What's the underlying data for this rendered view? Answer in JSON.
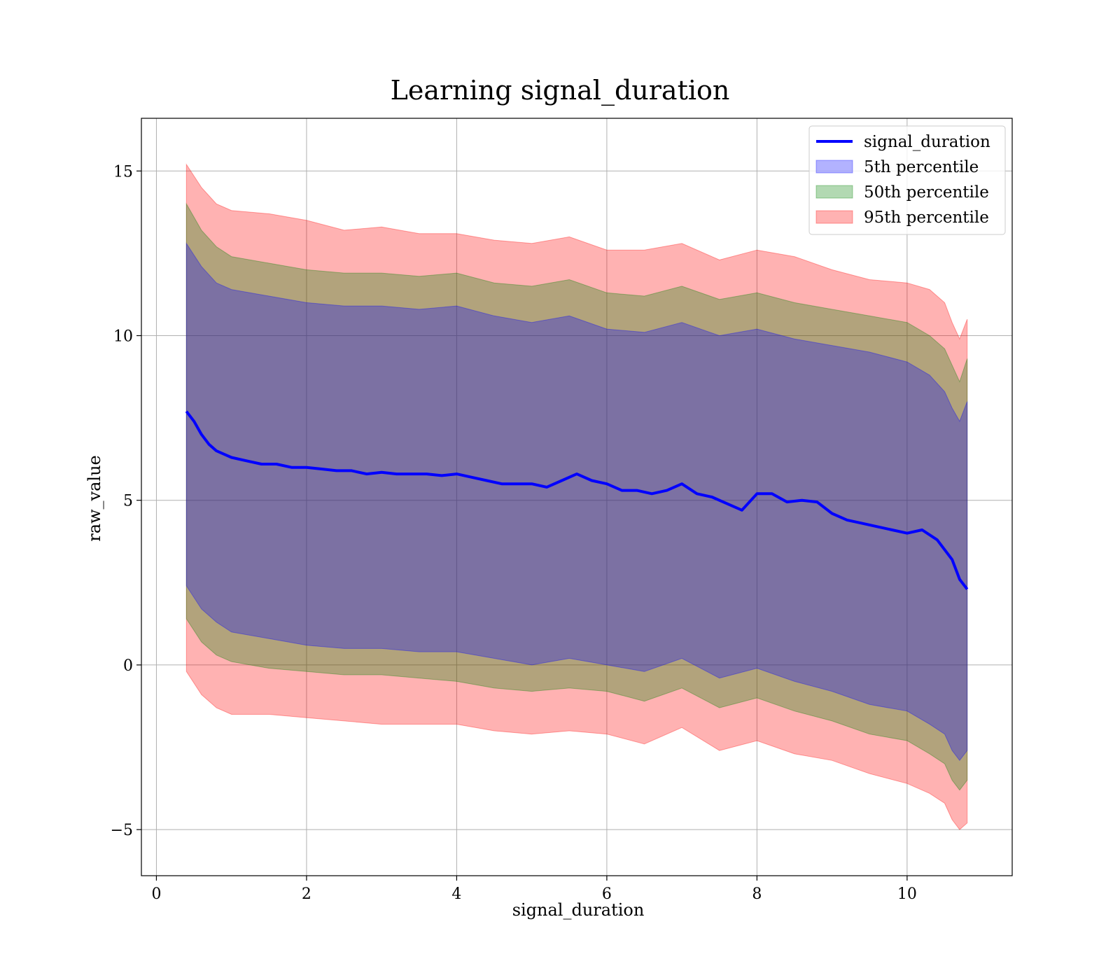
{
  "chart_data": {
    "type": "area",
    "title": "Learning signal_duration",
    "xlabel": "signal_duration",
    "ylabel": "raw_value",
    "xlim": [
      -0.2,
      11.4
    ],
    "ylim": [
      -6.4,
      16.6
    ],
    "xticks": [
      0,
      2,
      4,
      6,
      8,
      10
    ],
    "yticks": [
      -5,
      0,
      5,
      10,
      15
    ],
    "xtick_labels": [
      "0",
      "2",
      "4",
      "6",
      "8",
      "10"
    ],
    "ytick_labels": [
      "−5",
      "0",
      "5",
      "10",
      "15"
    ],
    "grid": true,
    "legend_position": "top-right",
    "colors": {
      "line": "#0000ff",
      "p5": "#0000ff",
      "p50": "#008000",
      "p95": "#ff0000",
      "grid": "#b0b0b0"
    },
    "line": {
      "name": "signal_duration",
      "x": [
        0.4,
        0.5,
        0.6,
        0.7,
        0.8,
        0.9,
        1.0,
        1.2,
        1.4,
        1.6,
        1.8,
        2.0,
        2.2,
        2.4,
        2.6,
        2.8,
        3.0,
        3.2,
        3.4,
        3.6,
        3.8,
        4.0,
        4.2,
        4.4,
        4.6,
        4.8,
        5.0,
        5.2,
        5.4,
        5.6,
        5.8,
        6.0,
        6.2,
        6.4,
        6.6,
        6.8,
        7.0,
        7.2,
        7.4,
        7.6,
        7.8,
        8.0,
        8.2,
        8.4,
        8.6,
        8.8,
        9.0,
        9.2,
        9.4,
        9.6,
        9.8,
        10.0,
        10.2,
        10.4,
        10.6,
        10.7,
        10.8
      ],
      "y": [
        7.7,
        7.4,
        7.0,
        6.7,
        6.5,
        6.4,
        6.3,
        6.2,
        6.1,
        6.1,
        6.0,
        6.0,
        5.95,
        5.9,
        5.9,
        5.8,
        5.85,
        5.8,
        5.8,
        5.8,
        5.75,
        5.8,
        5.7,
        5.6,
        5.5,
        5.5,
        5.5,
        5.4,
        5.6,
        5.8,
        5.6,
        5.5,
        5.3,
        5.3,
        5.2,
        5.3,
        5.5,
        5.2,
        5.1,
        4.9,
        4.7,
        5.2,
        5.2,
        4.95,
        5.0,
        4.95,
        4.6,
        4.4,
        4.3,
        4.2,
        4.1,
        4.0,
        4.1,
        3.8,
        3.2,
        2.6,
        2.3
      ]
    },
    "bands": [
      {
        "name": "95th percentile",
        "x": [
          0.4,
          0.6,
          0.8,
          1.0,
          1.5,
          2.0,
          2.5,
          3.0,
          3.5,
          4.0,
          4.5,
          5.0,
          5.5,
          6.0,
          6.5,
          7.0,
          7.5,
          8.0,
          8.5,
          9.0,
          9.5,
          10.0,
          10.3,
          10.5,
          10.6,
          10.7,
          10.8
        ],
        "upper": [
          15.2,
          14.5,
          14.0,
          13.8,
          13.7,
          13.5,
          13.2,
          13.3,
          13.1,
          13.1,
          12.9,
          12.8,
          13.0,
          12.6,
          12.6,
          12.8,
          12.3,
          12.6,
          12.4,
          12.0,
          11.7,
          11.6,
          11.4,
          11.0,
          10.4,
          9.9,
          10.5
        ],
        "lower": [
          -0.2,
          -0.9,
          -1.3,
          -1.5,
          -1.5,
          -1.6,
          -1.7,
          -1.8,
          -1.8,
          -1.8,
          -2.0,
          -2.1,
          -2.0,
          -2.1,
          -2.4,
          -1.9,
          -2.6,
          -2.3,
          -2.7,
          -2.9,
          -3.3,
          -3.6,
          -3.9,
          -4.2,
          -4.7,
          -5.0,
          -4.8
        ]
      },
      {
        "name": "50th percentile",
        "x": [
          0.4,
          0.6,
          0.8,
          1.0,
          1.5,
          2.0,
          2.5,
          3.0,
          3.5,
          4.0,
          4.5,
          5.0,
          5.5,
          6.0,
          6.5,
          7.0,
          7.5,
          8.0,
          8.5,
          9.0,
          9.5,
          10.0,
          10.3,
          10.5,
          10.6,
          10.7,
          10.8
        ],
        "upper": [
          14.0,
          13.2,
          12.7,
          12.4,
          12.2,
          12.0,
          11.9,
          11.9,
          11.8,
          11.9,
          11.6,
          11.5,
          11.7,
          11.3,
          11.2,
          11.5,
          11.1,
          11.3,
          11.0,
          10.8,
          10.6,
          10.4,
          10.0,
          9.6,
          9.1,
          8.6,
          9.3
        ],
        "lower": [
          1.4,
          0.7,
          0.3,
          0.1,
          -0.1,
          -0.2,
          -0.3,
          -0.3,
          -0.4,
          -0.5,
          -0.7,
          -0.8,
          -0.7,
          -0.8,
          -1.1,
          -0.7,
          -1.3,
          -1.0,
          -1.4,
          -1.7,
          -2.1,
          -2.3,
          -2.7,
          -3.0,
          -3.5,
          -3.8,
          -3.5
        ]
      },
      {
        "name": "5th percentile",
        "x": [
          0.4,
          0.6,
          0.8,
          1.0,
          1.5,
          2.0,
          2.5,
          3.0,
          3.5,
          4.0,
          4.5,
          5.0,
          5.5,
          6.0,
          6.5,
          7.0,
          7.5,
          8.0,
          8.5,
          9.0,
          9.5,
          10.0,
          10.3,
          10.5,
          10.6,
          10.7,
          10.8
        ],
        "upper": [
          12.8,
          12.1,
          11.6,
          11.4,
          11.2,
          11.0,
          10.9,
          10.9,
          10.8,
          10.9,
          10.6,
          10.4,
          10.6,
          10.2,
          10.1,
          10.4,
          10.0,
          10.2,
          9.9,
          9.7,
          9.5,
          9.2,
          8.8,
          8.3,
          7.8,
          7.4,
          8.0
        ],
        "lower": [
          2.4,
          1.7,
          1.3,
          1.0,
          0.8,
          0.6,
          0.5,
          0.5,
          0.4,
          0.4,
          0.2,
          0.0,
          0.2,
          0.0,
          -0.2,
          0.2,
          -0.4,
          -0.1,
          -0.5,
          -0.8,
          -1.2,
          -1.4,
          -1.8,
          -2.1,
          -2.6,
          -2.9,
          -2.6
        ]
      }
    ],
    "legend": [
      {
        "label": "signal_duration",
        "kind": "line",
        "color": "#0000ff"
      },
      {
        "label": "5th percentile",
        "kind": "patch",
        "color": "#0000ff"
      },
      {
        "label": "50th percentile",
        "kind": "patch",
        "color": "#008000"
      },
      {
        "label": "95th percentile",
        "kind": "patch",
        "color": "#ff0000"
      }
    ]
  }
}
